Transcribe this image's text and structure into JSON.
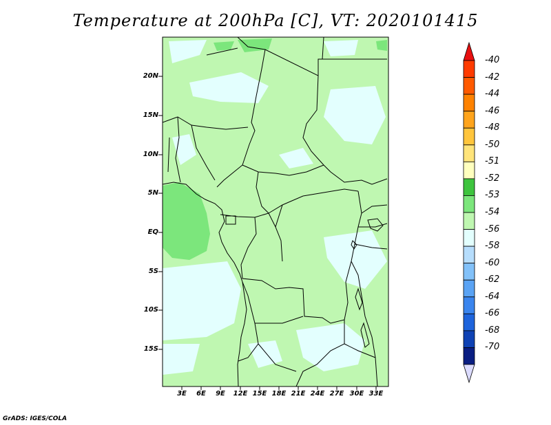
{
  "title": "Temperature at 200hPa [C], VT: 2020101415",
  "credit": "GrADS: IGES/COLA",
  "map": {
    "lat_labels": [
      "20N",
      "15N",
      "10N",
      "5N",
      "EQ",
      "5S",
      "10S",
      "15S"
    ],
    "lon_labels": [
      "3E",
      "6E",
      "9E",
      "12E",
      "15E",
      "18E",
      "21E",
      "24E",
      "27E",
      "30E",
      "33E"
    ]
  },
  "colorbar": {
    "levels": [
      {
        "label": "-40",
        "color": "#ff3b00"
      },
      {
        "label": "-42",
        "color": "#ff5a00"
      },
      {
        "label": "-44",
        "color": "#ff8200"
      },
      {
        "label": "-46",
        "color": "#ffa41c"
      },
      {
        "label": "-48",
        "color": "#ffc53c"
      },
      {
        "label": "-50",
        "color": "#ffe47a"
      },
      {
        "label": "-51",
        "color": "#ffffbe"
      },
      {
        "label": "-52",
        "color": "#3ec43e"
      },
      {
        "label": "-53",
        "color": "#7ce67c"
      },
      {
        "label": "-54",
        "color": "#bff7b1"
      },
      {
        "label": "-56",
        "color": "#e3fffe"
      },
      {
        "label": "-58",
        "color": "#b6ddfc"
      },
      {
        "label": "-60",
        "color": "#82c1f9"
      },
      {
        "label": "-62",
        "color": "#5aa3f4"
      },
      {
        "label": "-64",
        "color": "#3a85ee"
      },
      {
        "label": "-66",
        "color": "#1e64dc"
      },
      {
        "label": "-68",
        "color": "#0f42b4"
      },
      {
        "label": "-70",
        "color": "#0a1e82"
      }
    ],
    "top_cap_color": "#e81010",
    "bottom_cap_color": "#dcdcff"
  }
}
